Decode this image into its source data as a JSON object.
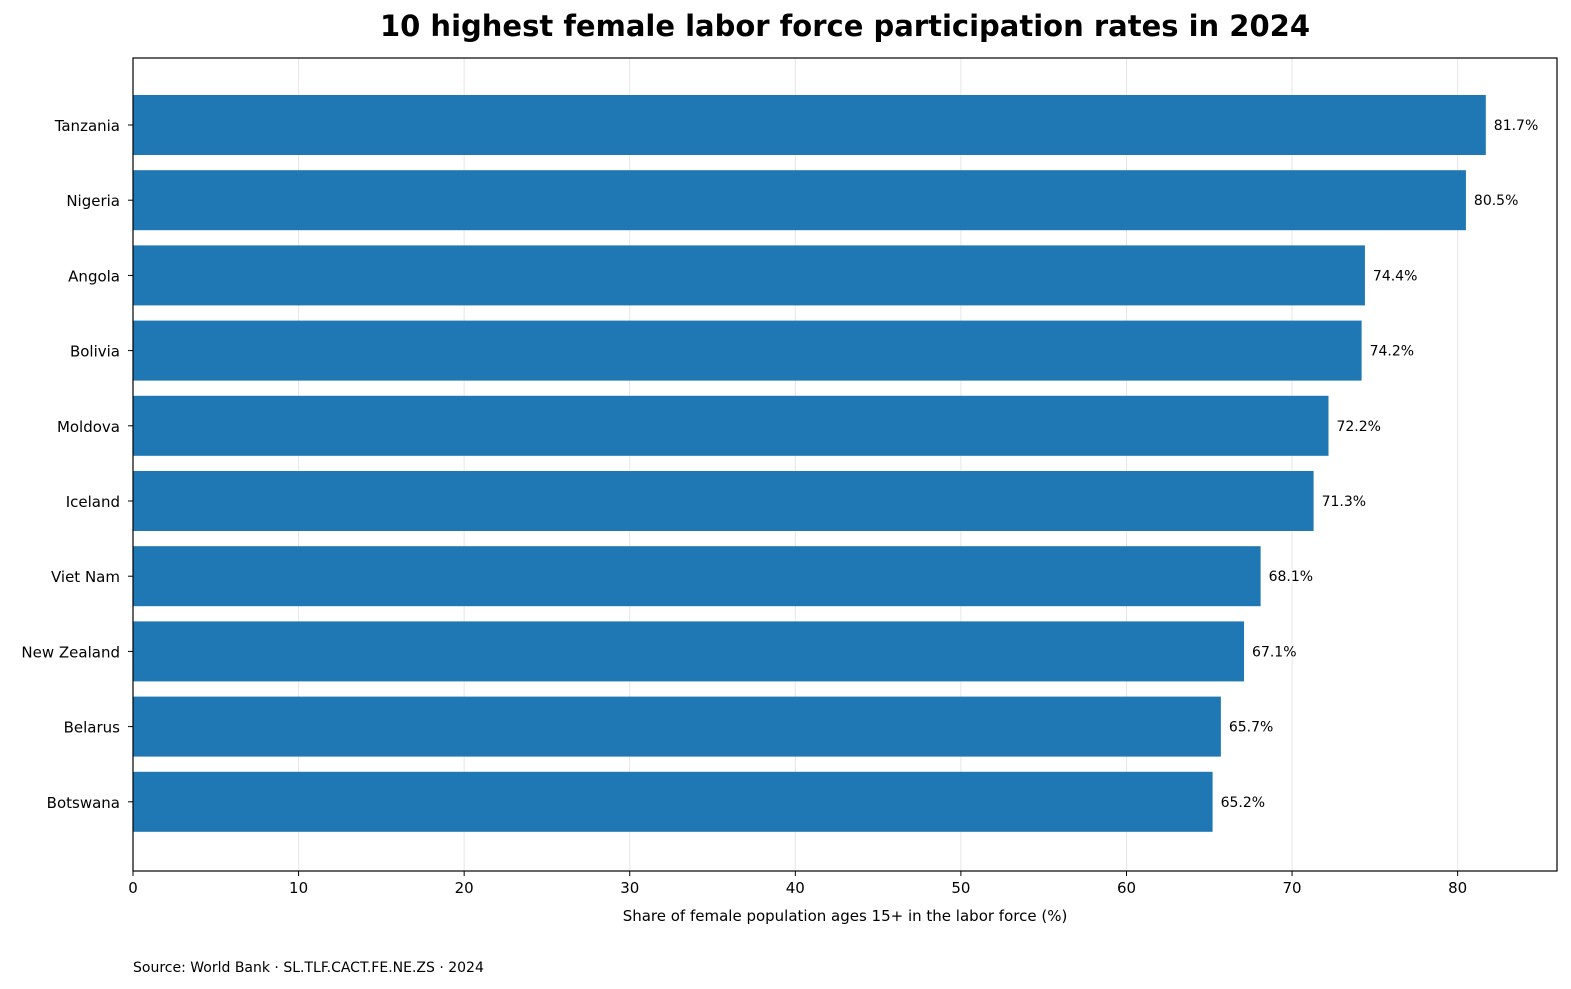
{
  "chart_data": {
    "type": "bar",
    "orientation": "horizontal",
    "title": "10 highest female labor force participation rates in 2024",
    "xlabel": "Share of female population ages 15+ in the labor force (%)",
    "ylabel": "",
    "categories": [
      "Tanzania",
      "Nigeria",
      "Angola",
      "Bolivia",
      "Moldova",
      "Iceland",
      "Viet Nam",
      "New Zealand",
      "Belarus",
      "Botswana"
    ],
    "values": [
      81.7,
      80.5,
      74.4,
      74.2,
      72.2,
      71.3,
      68.1,
      67.1,
      65.7,
      65.2
    ],
    "value_labels": [
      "81.7%",
      "80.5%",
      "74.4%",
      "74.2%",
      "72.2%",
      "71.3%",
      "68.1%",
      "67.1%",
      "65.7%",
      "65.2%"
    ],
    "xlim": [
      0,
      86
    ],
    "xticks": [
      0,
      10,
      20,
      30,
      40,
      50,
      60,
      70,
      80
    ],
    "grid": "vertical",
    "bar_color": "#1f77b4",
    "source": "Source: World Bank · SL.TLF.CACT.FE.NE.ZS · 2024"
  }
}
